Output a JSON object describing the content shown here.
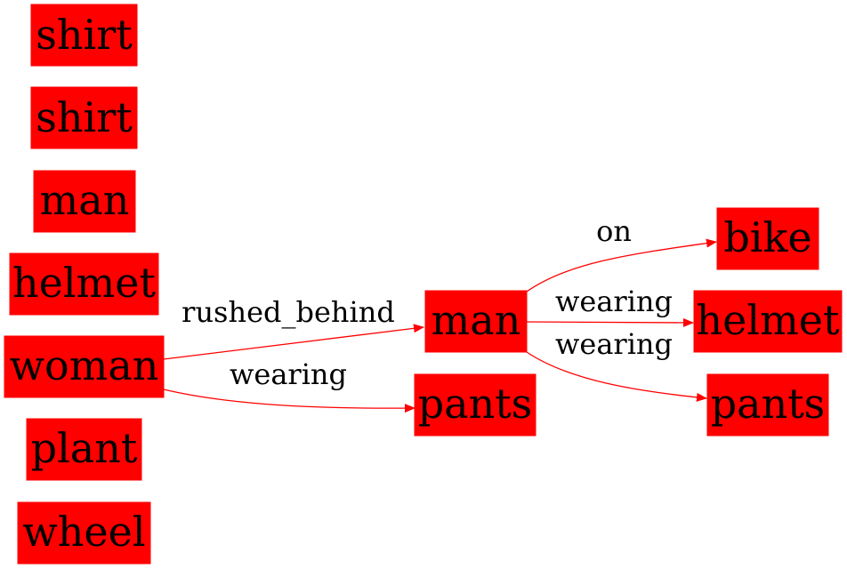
{
  "graph": {
    "colors": {
      "node_fill": "#ff0000",
      "edge": "#ff0000",
      "text": "#000000",
      "background": "#ffffff"
    },
    "nodes": {
      "shirt_1": "shirt",
      "shirt_2": "shirt",
      "man_1": "man",
      "helmet_1": "helmet",
      "woman": "woman",
      "plant": "plant",
      "wheel": "wheel",
      "man_2": "man",
      "pants_1": "pants",
      "bike": "bike",
      "helmet_2": "helmet",
      "pants_2": "pants"
    },
    "edges": [
      {
        "from": "woman",
        "to": "man_2",
        "label": "rushed_behind"
      },
      {
        "from": "woman",
        "to": "pants_1",
        "label": "wearing"
      },
      {
        "from": "man_2",
        "to": "bike",
        "label": "on"
      },
      {
        "from": "man_2",
        "to": "helmet_2",
        "label": "wearing"
      },
      {
        "from": "man_2",
        "to": "pants_2",
        "label": "wearing"
      }
    ]
  }
}
